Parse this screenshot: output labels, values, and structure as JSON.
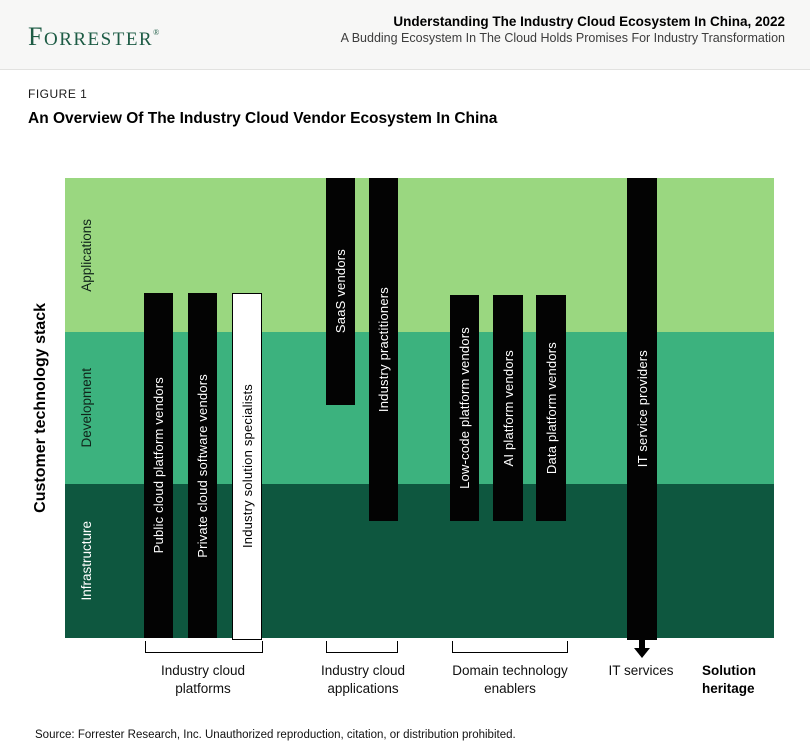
{
  "header": {
    "logo_text": "Forrester",
    "logo_registered": "®",
    "title": "Understanding The Industry Cloud Ecosystem In China, 2022",
    "subtitle": "A Budding Ecosystem In The Cloud Holds Promises For Industry Transformation"
  },
  "figure": {
    "label": "FIGURE 1",
    "title": "An Overview Of The Industry Cloud Vendor Ecosystem In China"
  },
  "diagram": {
    "y_axis_label": "Customer technology stack",
    "bands": [
      {
        "label": "Applications",
        "color": "#9AD780"
      },
      {
        "label": "Development",
        "color": "#3CB27E"
      },
      {
        "label": "Infrastructure",
        "color": "#0E573F"
      }
    ],
    "vendors": [
      {
        "label": "Public cloud platform vendors",
        "style": "solid-black",
        "group": "Industry cloud platforms",
        "spans": [
          "Applications (partial)",
          "Development",
          "Infrastructure"
        ]
      },
      {
        "label": "Private cloud software vendors",
        "style": "solid-black",
        "group": "Industry cloud platforms",
        "spans": [
          "Applications (partial)",
          "Development",
          "Infrastructure"
        ]
      },
      {
        "label": "Industry solution specialists",
        "style": "white-outline",
        "group": "Industry cloud platforms",
        "spans": [
          "Applications (partial)",
          "Development",
          "Infrastructure"
        ]
      },
      {
        "label": "SaaS vendors",
        "style": "solid-black",
        "group": "Industry cloud applications",
        "spans": [
          "Applications",
          "Development (partial)"
        ]
      },
      {
        "label": "Industry practitioners",
        "style": "solid-black",
        "group": "Industry cloud applications",
        "spans": [
          "Applications",
          "Development",
          "Infrastructure (partial)"
        ]
      },
      {
        "label": "Low-code platform vendors",
        "style": "solid-black",
        "group": "Domain technology enablers",
        "spans": [
          "Applications (partial)",
          "Development",
          "Infrastructure (partial)"
        ]
      },
      {
        "label": "AI platform vendors",
        "style": "solid-black",
        "group": "Domain technology enablers",
        "spans": [
          "Applications (partial)",
          "Development",
          "Infrastructure (partial)"
        ]
      },
      {
        "label": "Data platform vendors",
        "style": "solid-black",
        "group": "Domain technology enablers",
        "spans": [
          "Applications (partial)",
          "Development",
          "Infrastructure (partial)"
        ]
      },
      {
        "label": "IT service providers",
        "style": "solid-black",
        "group": "IT services",
        "spans": [
          "Applications",
          "Development",
          "Infrastructure"
        ]
      }
    ],
    "groups": [
      {
        "line1": "Industry cloud",
        "line2": "platforms"
      },
      {
        "line1": "Industry cloud",
        "line2": "applications"
      },
      {
        "line1": "Domain technology",
        "line2": "enablers"
      },
      {
        "line1": "IT services",
        "line2": ""
      }
    ],
    "heritage_label": {
      "line1": "Solution",
      "line2": "heritage"
    },
    "colors": {
      "bar_black": "#030303",
      "band_applications": "#9AD780",
      "band_development": "#3CB27E",
      "band_infrastructure": "#0E573F",
      "logo_green": "#1E5C45",
      "header_background": "#F7F7F6"
    }
  },
  "source": "Source: Forrester Research, Inc. Unauthorized reproduction, citation, or distribution prohibited."
}
